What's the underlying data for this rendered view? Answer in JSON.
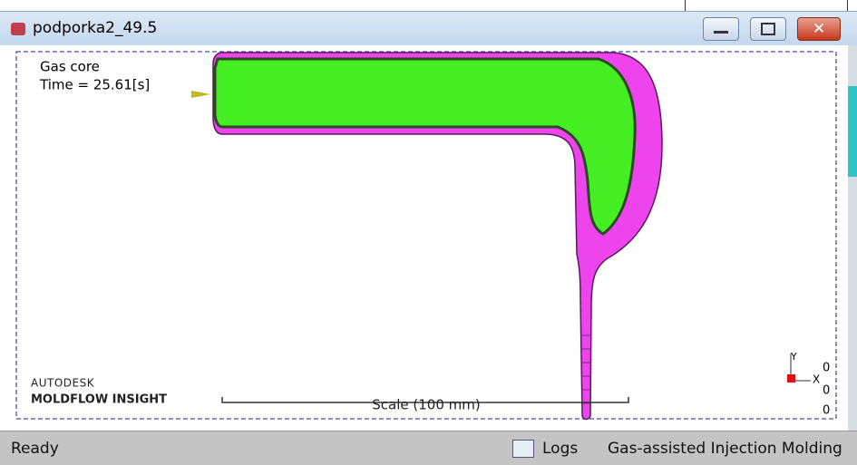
{
  "window": {
    "title": "podporka2_49.5"
  },
  "viewport": {
    "result_name": "Gas core",
    "time": "Time = 25.61[s]",
    "brand": "AUTODESK",
    "product": "MOLDFLOW INSIGHT",
    "scale_label": "Scale (100 mm)",
    "axes": {
      "y": "Y",
      "x": "X",
      "coords": [
        "0",
        "0",
        "0"
      ]
    }
  },
  "status_bar": {
    "status": "Ready",
    "logs": "Logs",
    "mode": "Gas-assisted Injection Molding"
  }
}
